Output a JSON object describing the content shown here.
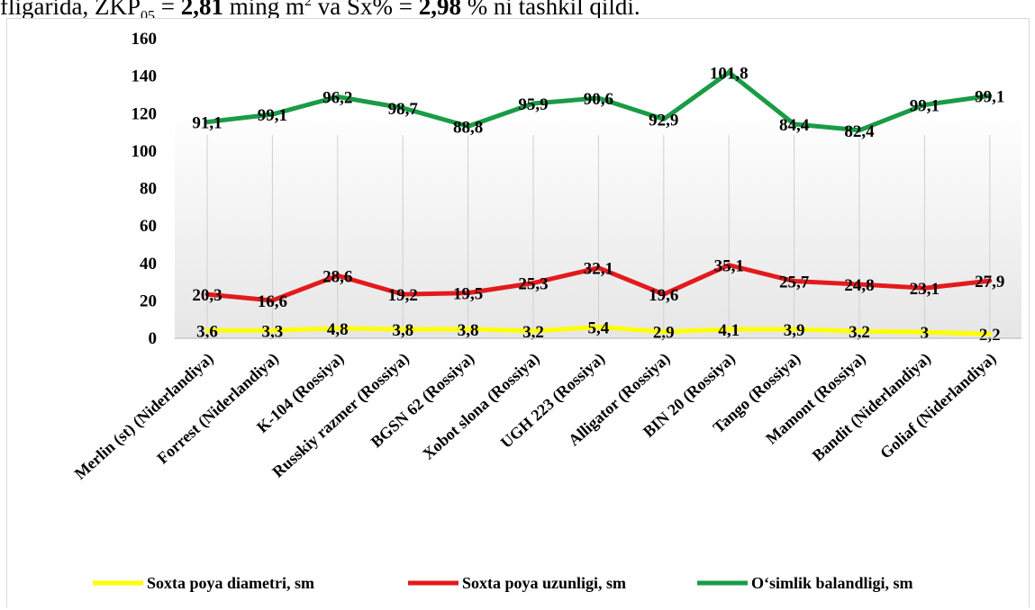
{
  "header": {
    "prefix": "fligarida, ZKP",
    "sub": "05",
    "mid": " = ",
    "value1": "2,81",
    "unit1": " ming m",
    "sup1": "2",
    "conj": " va Sx% = ",
    "value2": "2,98",
    "unit2": " % ni tashkil qildi."
  },
  "chart_data": {
    "type": "line",
    "categories": [
      "Merlin (st) (Niderlandiya)",
      "Forrest (Niderlandiya)",
      "K-104 (Rossiya)",
      "Russkiy razmer (Rossiya)",
      "BGSN 62 (Rossiya)",
      "Xobot slona (Rossiya)",
      "UGH 223 (Rossiya)",
      "Alligator (Rossiya)",
      "BIN 20 (Rossiya)",
      "Tango (Rossiya)",
      "Mamont (Rossiya)",
      "Bandit (Niderlandiya)",
      "Goliaf (Niderlandiya)"
    ],
    "yticks": [
      "0",
      "20",
      "40",
      "60",
      "80",
      "100",
      "120",
      "140",
      "160"
    ],
    "ylim": [
      0,
      160
    ],
    "legend_position": "bottom",
    "series": [
      {
        "name": "Soxta poya diametri, sm",
        "color": "#ffff00",
        "values": [
          3.6,
          3.3,
          4.8,
          3.8,
          3.8,
          3.2,
          5.4,
          2.9,
          4.1,
          3.9,
          3.2,
          3,
          2.2
        ],
        "plot_values": [
          4.2,
          4.2,
          5.3,
          4.8,
          4.9,
          3.9,
          6.0,
          3.5,
          4.8,
          4.8,
          3.8,
          3.3,
          2.3
        ],
        "labels": [
          "3,6",
          "3,3",
          "4,8",
          "3,8",
          "3,8",
          "3,2",
          "5,4",
          "2,9",
          "4,1",
          "3,9",
          "3,2",
          "3",
          "2,2"
        ]
      },
      {
        "name": "Soxta poya uzunligi, sm",
        "color": "#e31a1c",
        "values": [
          20.3,
          16.6,
          28.6,
          19.2,
          19.5,
          25.3,
          32.1,
          19.6,
          35.1,
          25.7,
          24.8,
          23.1,
          27.9
        ],
        "plot_values": [
          23.5,
          20.2,
          33.5,
          23.5,
          24.2,
          29.5,
          37.6,
          23.5,
          39.1,
          30.5,
          28.8,
          26.8,
          30.7
        ],
        "labels": [
          "20,3",
          "16,6",
          "28,6",
          "19,2",
          "19,5",
          "25,3",
          "32,1",
          "19,6",
          "35,1",
          "25,7",
          "24,8",
          "23,1",
          "27,9"
        ]
      },
      {
        "name": "O‘simlik balandligi, sm",
        "color": "#1a9b46",
        "values": [
          91.1,
          99.1,
          96.2,
          98.7,
          88.8,
          95.9,
          90.6,
          92.9,
          101.8,
          84.4,
          82.4,
          99.1,
          99.1
        ],
        "plot_values": [
          115.5,
          119.6,
          129.0,
          123.0,
          113.2,
          125.4,
          128.3,
          117.0,
          142.0,
          114.4,
          111.1,
          124.7,
          129.5
        ],
        "labels": [
          "91,1",
          "99,1",
          "96,2",
          "98,7",
          "88,8",
          "95,9",
          "90,6",
          "92,9",
          "101,8",
          "84,4",
          "82,4",
          "99,1",
          "99,1"
        ]
      }
    ]
  }
}
